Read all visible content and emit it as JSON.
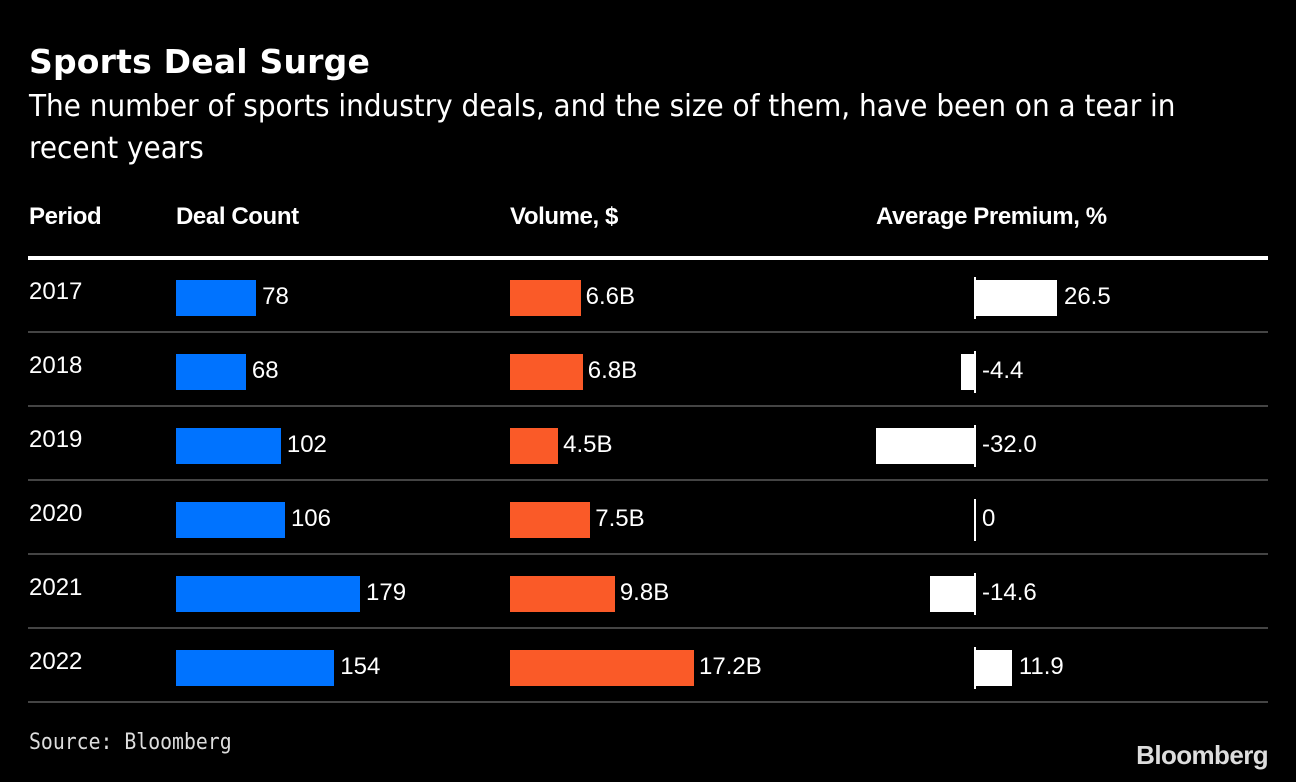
{
  "title": "Sports Deal Surge",
  "subtitle": "The number of sports industry deals, and the size of them, have been on a tear in recent years",
  "source": "Source: Bloomberg",
  "brand": "Bloomberg",
  "colors": {
    "deal_count": "#0073ff",
    "volume": "#fa5a28",
    "premium": "#ffffff",
    "background": "#000000"
  },
  "chart_data": {
    "type": "table",
    "title": "Sports Deal Surge",
    "subtitle": "The number of sports industry deals, and the size of them, have been on a tear in recent years",
    "columns": [
      "Period",
      "Deal Count",
      "Volume, $",
      "Average Premium, %"
    ],
    "categories": [
      "2017",
      "2018",
      "2019",
      "2020",
      "2021",
      "2022"
    ],
    "series": [
      {
        "name": "Deal Count",
        "values": [
          78,
          68,
          102,
          106,
          179,
          154
        ],
        "labels": [
          "78",
          "68",
          "102",
          "106",
          "179",
          "154"
        ]
      },
      {
        "name": "Volume, $",
        "unit": "B",
        "values": [
          6.6,
          6.8,
          4.5,
          7.5,
          9.8,
          17.2
        ],
        "labels": [
          "6.6B",
          "6.8B",
          "4.5B",
          "7.5B",
          "9.8B",
          "17.2B"
        ]
      },
      {
        "name": "Average Premium, %",
        "values": [
          26.5,
          -4.4,
          -32.0,
          0,
          -14.6,
          11.9
        ],
        "labels": [
          "26.5",
          "-4.4",
          "-32.0",
          "0",
          "-14.6",
          "11.9"
        ]
      }
    ],
    "source": "Source: Bloomberg"
  }
}
